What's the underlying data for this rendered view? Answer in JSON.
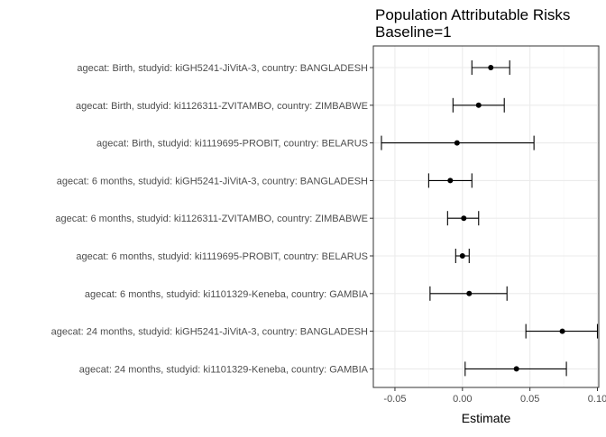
{
  "chart_data": {
    "type": "scatter",
    "title_lines": [
      "Population Attributable Risks",
      "Baseline=1"
    ],
    "xlabel": "Estimate",
    "ylabel": "",
    "xlim": [
      -0.066,
      0.101
    ],
    "x_ticks": [
      -0.05,
      0.0,
      0.05,
      0.1
    ],
    "x_tick_labels": [
      "-0.05",
      "0.00",
      "0.05",
      "0.10"
    ],
    "grid": true,
    "legend": "none",
    "colors": {
      "panel_border": "#333333",
      "grid_major": "#ebebeb",
      "grid_minor": "#f5f5f5",
      "point": "#000000",
      "errorbar": "#000000"
    },
    "rows": [
      {
        "label": "agecat: Birth, studyid: kiGH5241-JiVitA-3, country: BANGLADESH",
        "estimate": 0.021,
        "lower": 0.007,
        "upper": 0.035
      },
      {
        "label": "agecat: Birth, studyid: ki1126311-ZVITAMBO, country: ZIMBABWE",
        "estimate": 0.012,
        "lower": -0.007,
        "upper": 0.031
      },
      {
        "label": "agecat: Birth, studyid: ki1119695-PROBIT, country: BELARUS",
        "estimate": -0.004,
        "lower": -0.06,
        "upper": 0.053
      },
      {
        "label": "agecat: 6 months, studyid: kiGH5241-JiVitA-3, country: BANGLADESH",
        "estimate": -0.009,
        "lower": -0.025,
        "upper": 0.007
      },
      {
        "label": "agecat: 6 months, studyid: ki1126311-ZVITAMBO, country: ZIMBABWE",
        "estimate": 0.001,
        "lower": -0.011,
        "upper": 0.012
      },
      {
        "label": "agecat: 6 months, studyid: ki1119695-PROBIT, country: BELARUS",
        "estimate": 0.0,
        "lower": -0.005,
        "upper": 0.005
      },
      {
        "label": "agecat: 6 months, studyid: ki1101329-Keneba, country: GAMBIA",
        "estimate": 0.005,
        "lower": -0.024,
        "upper": 0.033
      },
      {
        "label": "agecat: 24 months, studyid: kiGH5241-JiVitA-3, country: BANGLADESH",
        "estimate": 0.074,
        "lower": 0.047,
        "upper": 0.1
      },
      {
        "label": "agecat: 24 months, studyid: ki1101329-Keneba, country: GAMBIA",
        "estimate": 0.04,
        "lower": 0.002,
        "upper": 0.077
      }
    ]
  }
}
